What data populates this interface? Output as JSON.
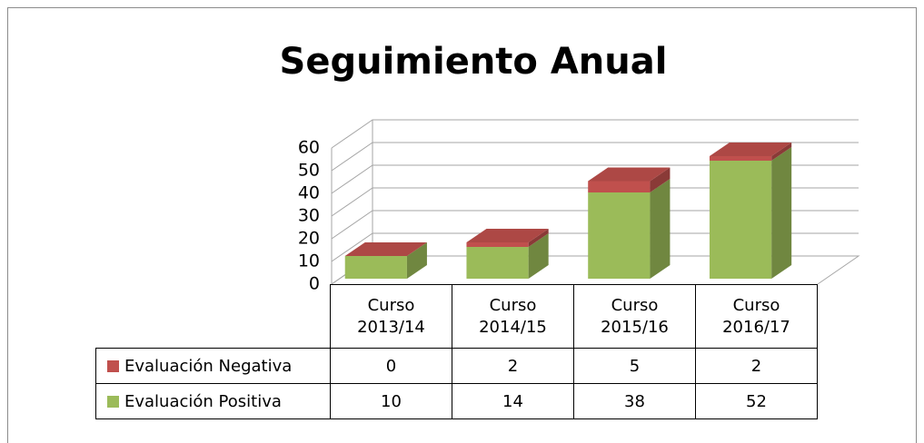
{
  "chart_data": {
    "type": "bar3d_stacked",
    "title": "Seguimiento Anual",
    "categories": [
      "Curso 2013/14",
      "Curso 2014/15",
      "Curso 2015/16",
      "Curso 2016/17"
    ],
    "series": [
      {
        "name": "Evaluación Negativa",
        "color": "#c0504d",
        "values": [
          0,
          2,
          5,
          2
        ]
      },
      {
        "name": "Evaluación Positiva",
        "color": "#9bbb59",
        "values": [
          10,
          14,
          38,
          52
        ]
      }
    ],
    "ylim": [
      0,
      60
    ],
    "yticks": [
      0,
      10,
      20,
      30,
      40,
      50,
      60
    ],
    "grid": true
  }
}
